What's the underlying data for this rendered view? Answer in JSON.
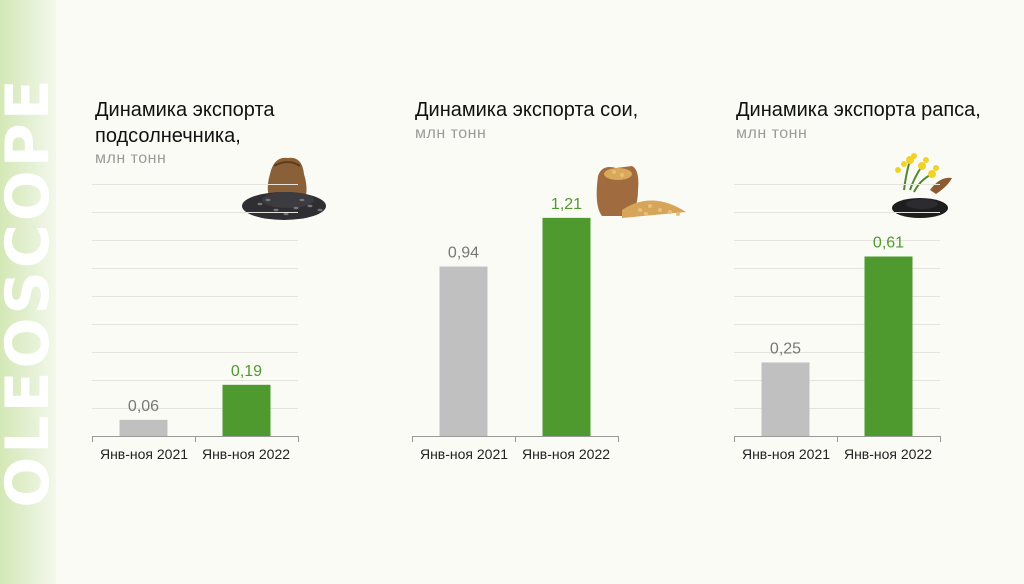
{
  "brand": {
    "watermark": "OLEOSCOPE"
  },
  "colors": {
    "bar_2021": "#c0c0c0",
    "bar_2022": "#4e9a2e",
    "label_2021": "#777777",
    "label_2022": "#4e9a2e",
    "grid": "#e4e4dc"
  },
  "chart_data": [
    {
      "type": "bar",
      "title": "Динамика экспорта подсолнечника,",
      "unit": "млн тонн",
      "illustration": "sunflower-seeds-bag-icon",
      "categories": [
        "Янв-ноя 2021",
        "Янв-ноя 2022"
      ],
      "values": [
        0.06,
        0.19
      ],
      "labels": [
        "0,06",
        "0,19"
      ],
      "ylim": [
        0,
        0.95
      ],
      "grid": true
    },
    {
      "type": "bar",
      "title": "Динамика экспорта сои,",
      "unit": "млн тонн",
      "illustration": "soybean-bag-icon",
      "categories": [
        "Янв-ноя 2021",
        "Янв-ноя 2022"
      ],
      "values": [
        0.94,
        1.21
      ],
      "labels": [
        "0,94",
        "1,21"
      ],
      "ylim": [
        0,
        1.42
      ],
      "grid": false
    },
    {
      "type": "bar",
      "title": "Динамика экспорта рапса,",
      "unit": "млн тонн",
      "illustration": "rapeseed-flower-icon",
      "categories": [
        "Янв-ноя 2021",
        "Янв-ноя 2022"
      ],
      "values": [
        0.25,
        0.61
      ],
      "labels": [
        "0,25",
        "0,61"
      ],
      "ylim": [
        0,
        0.87
      ],
      "grid": true
    }
  ]
}
